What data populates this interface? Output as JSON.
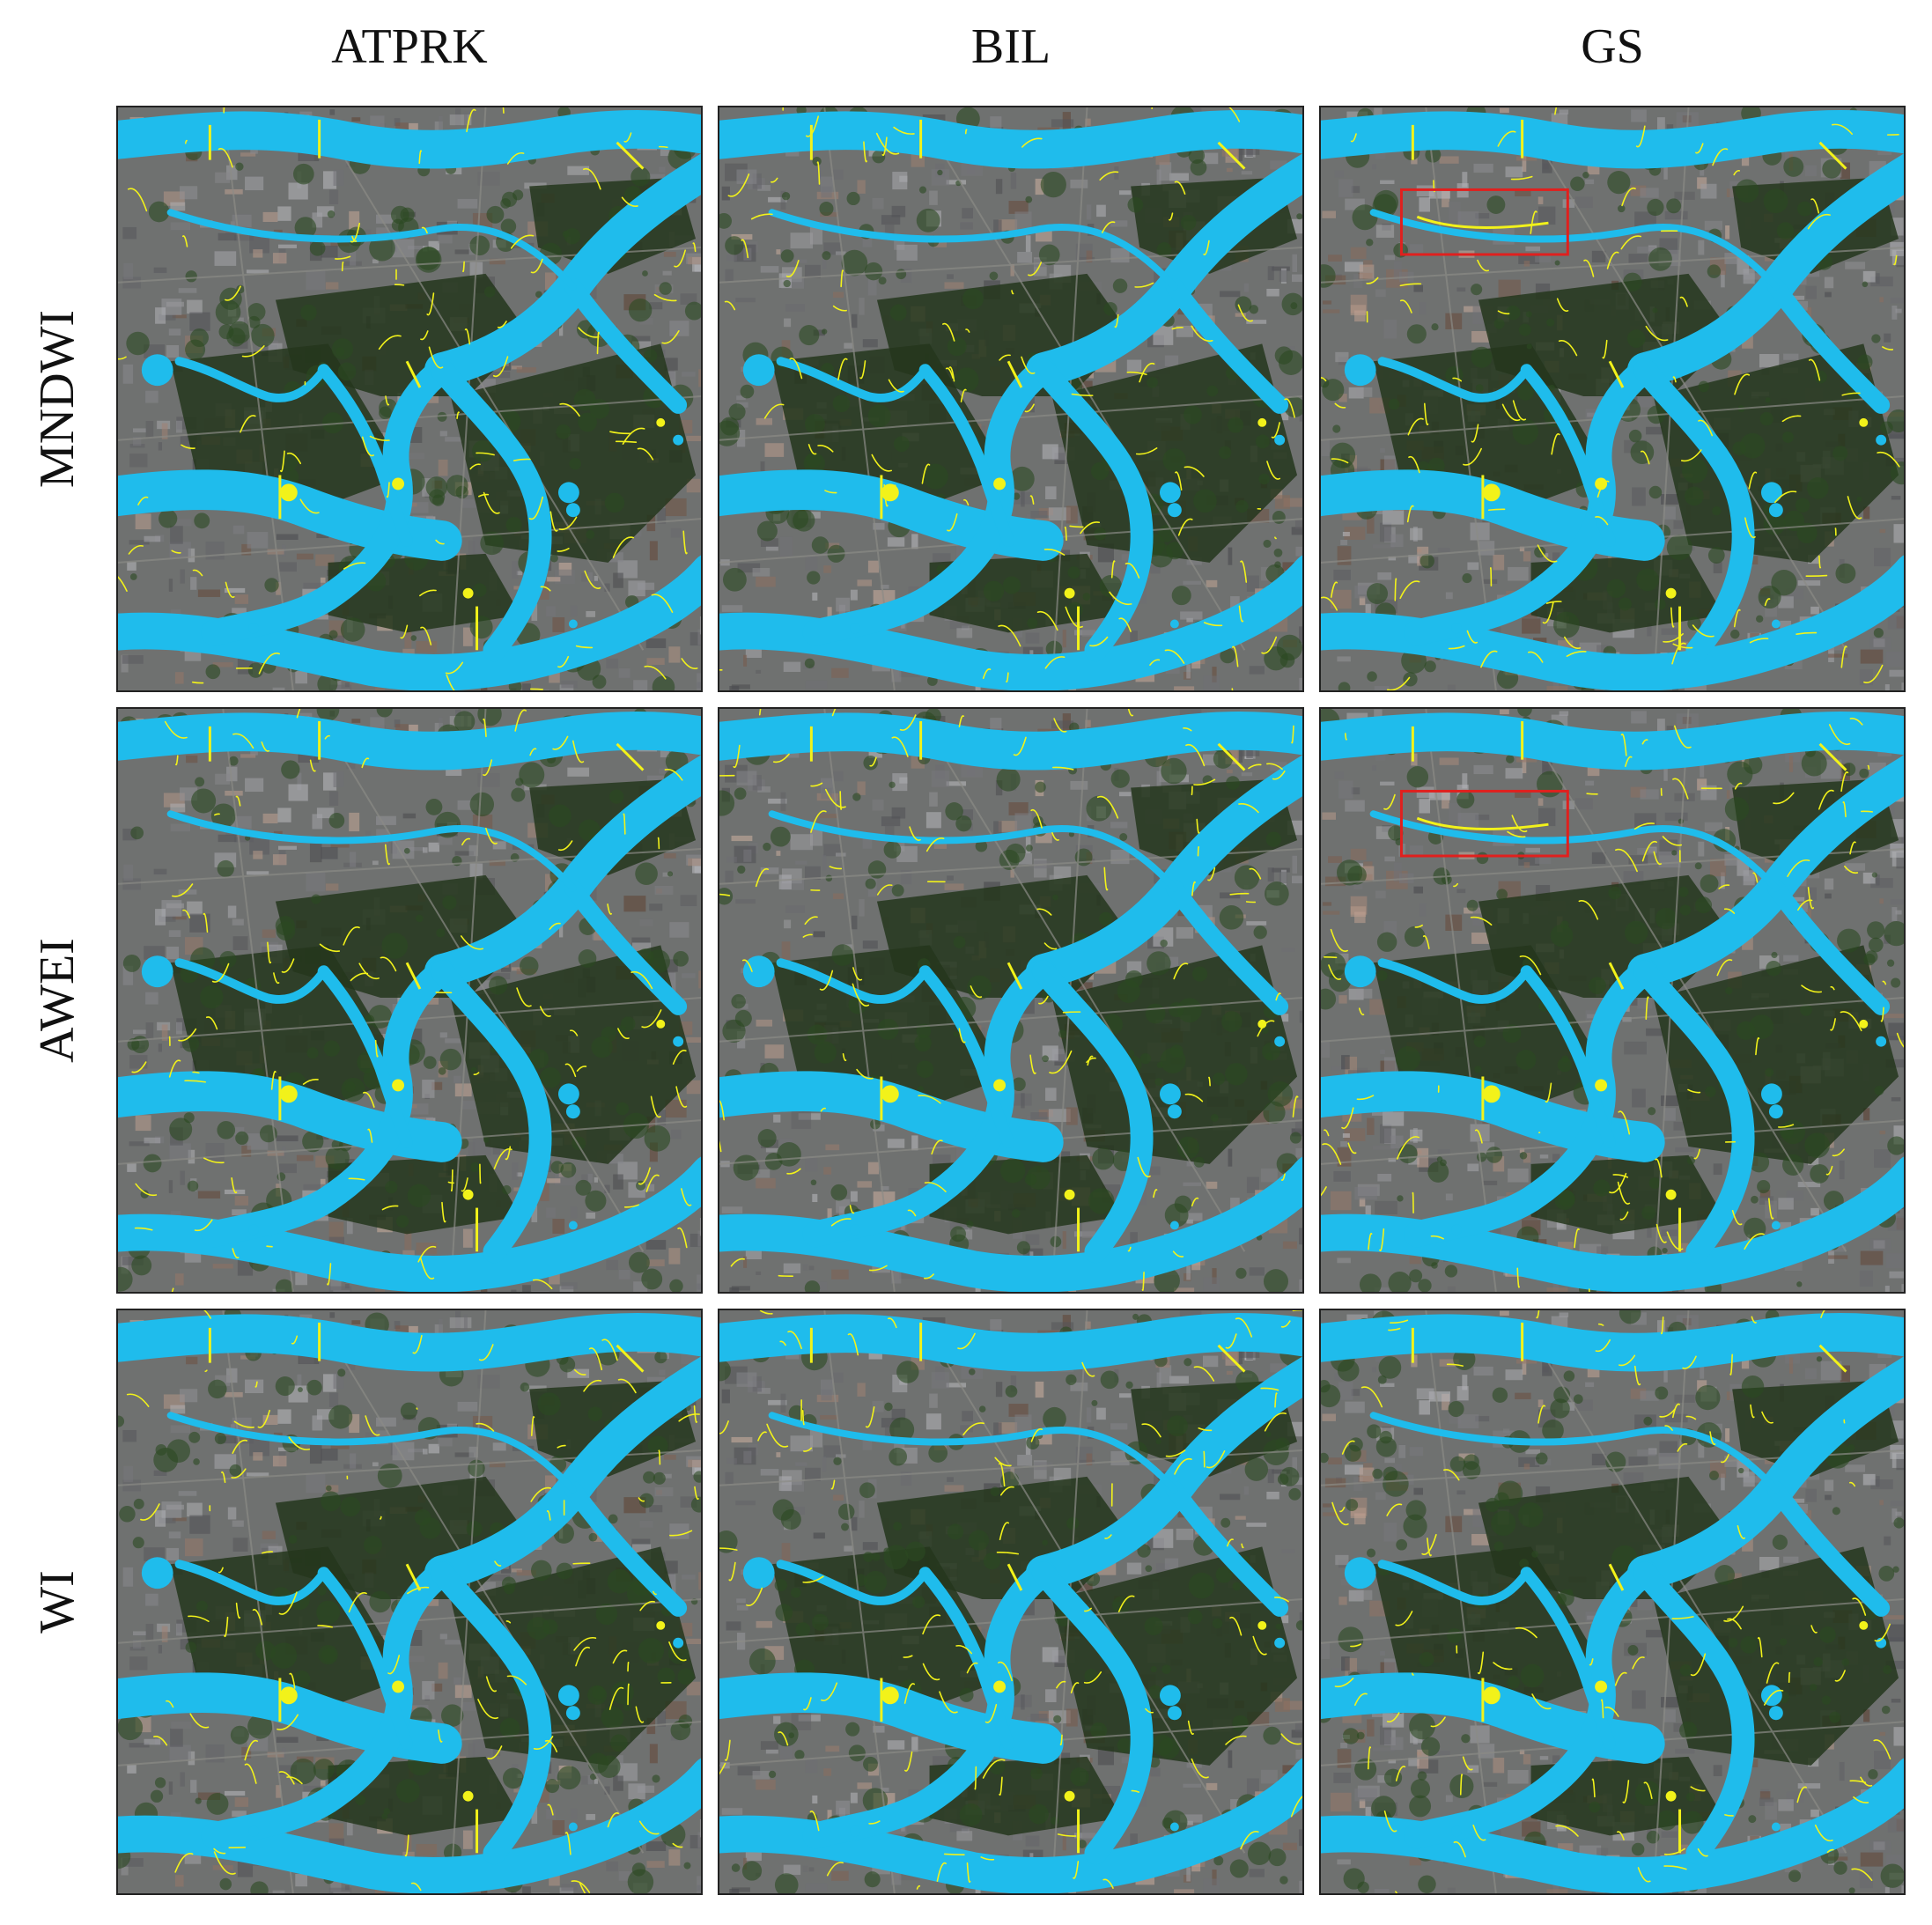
{
  "columns": [
    "ATPRK",
    "BIL",
    "GS"
  ],
  "rows": [
    "MNDWI",
    "AWEI",
    "WI"
  ],
  "panels": [
    {
      "row": "MNDWI",
      "column": "ATPRK",
      "highlight_box": false
    },
    {
      "row": "MNDWI",
      "column": "BIL",
      "highlight_box": false
    },
    {
      "row": "MNDWI",
      "column": "GS",
      "highlight_box": true
    },
    {
      "row": "AWEI",
      "column": "ATPRK",
      "highlight_box": false
    },
    {
      "row": "AWEI",
      "column": "BIL",
      "highlight_box": false
    },
    {
      "row": "AWEI",
      "column": "GS",
      "highlight_box": true
    },
    {
      "row": "WI",
      "column": "ATPRK",
      "highlight_box": false
    },
    {
      "row": "WI",
      "column": "BIL",
      "highlight_box": false
    },
    {
      "row": "WI",
      "column": "GS",
      "highlight_box": false
    }
  ],
  "colors": {
    "water": "#1fbcec",
    "error_overlay": "#f2f21a",
    "highlight_box": "#e0201e",
    "vegetation": "#24361c",
    "urban": "#6f7170"
  }
}
